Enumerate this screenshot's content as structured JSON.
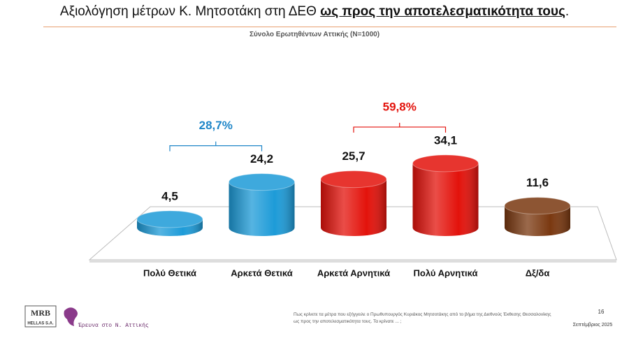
{
  "chart_data": {
    "type": "bar3d",
    "title": "Αξιολόγηση μέτρων Κ. Μητσοτάκη στη ΔΕΘ",
    "title_emphasis": "ως προς την αποτελεσματικότητα τους",
    "title_end": ".",
    "subtitle": "Σύνολο Ερωτηθέντων Αττικής (N=1000)",
    "categories": [
      "Πολύ Θετικά",
      "Αρκετά Θετικά",
      "Αρκετά Αρνητικά",
      "Πολύ Αρνητικά",
      "Δξ/δα"
    ],
    "values": [
      4.5,
      24.2,
      25.7,
      34.1,
      11.6
    ],
    "value_labels": [
      "4,5",
      "24,2",
      "25,7",
      "34,1",
      "11,6"
    ],
    "colors": [
      "#1d9bd8",
      "#1d9bd8",
      "#e3120b",
      "#e3120b",
      "#7a3810"
    ],
    "groups": [
      {
        "label": "28,7%",
        "value": 28.7,
        "color": "#1f86c8",
        "categories": [
          "Πολύ Θετικά",
          "Αρκετά Θετικά"
        ]
      },
      {
        "label": "59,8%",
        "value": 59.8,
        "color": "#e3120b",
        "categories": [
          "Αρκετά Αρνητικά",
          "Πολύ Αρνητικά"
        ]
      }
    ]
  },
  "footer": {
    "logo": "MRB",
    "logo_sub": "HELLAS S.A.",
    "survey": "Έρευνα στο Ν. Αττικής",
    "question": "Πως κρίνετε τα μέτρα που εξήγγειλε ο Πρωθυπουργός Κυριάκος Μητσοτάκης από το βήμα της Διεθνούς Έκθεσης Θεσσαλονίκης ως προς την αποτελεσματικότητα τους. Τα κρίνατε ... ;",
    "page": "16",
    "date": "Σεπτέμβριος 2025"
  }
}
